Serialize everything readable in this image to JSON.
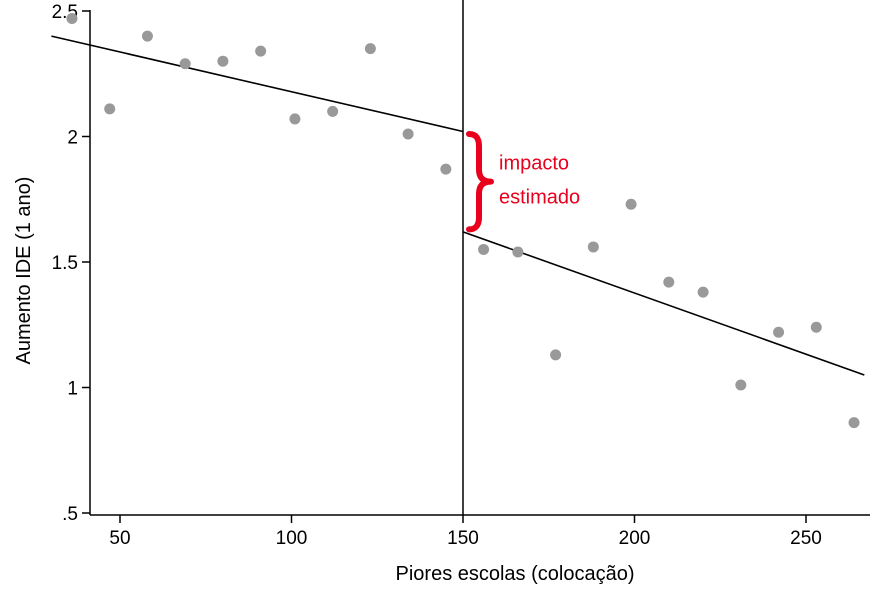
{
  "chart_data": {
    "type": "scatter",
    "xlabel": "Piores escolas (colocação)",
    "ylabel": "Aumento IDE (1 ano)",
    "xlim": [
      30,
      270
    ],
    "ylim": [
      0.5,
      2.5
    ],
    "xticks": [
      {
        "value": 50,
        "label": "50"
      },
      {
        "value": 100,
        "label": "100"
      },
      {
        "value": 150,
        "label": "150"
      },
      {
        "value": 200,
        "label": "200"
      },
      {
        "value": 250,
        "label": "250"
      }
    ],
    "yticks": [
      {
        "value": 0.5,
        "label": ".5"
      },
      {
        "value": 1,
        "label": "1"
      },
      {
        "value": 1.5,
        "label": "1.5"
      },
      {
        "value": 2,
        "label": "2"
      },
      {
        "value": 2.5,
        "label": "2.5"
      }
    ],
    "grid": false,
    "points": [
      {
        "x": 36,
        "y": 2.47
      },
      {
        "x": 47,
        "y": 2.11
      },
      {
        "x": 58,
        "y": 2.4
      },
      {
        "x": 69,
        "y": 2.29
      },
      {
        "x": 80,
        "y": 2.3
      },
      {
        "x": 91,
        "y": 2.34
      },
      {
        "x": 101,
        "y": 2.07
      },
      {
        "x": 112,
        "y": 2.1
      },
      {
        "x": 123,
        "y": 2.35
      },
      {
        "x": 134,
        "y": 2.01
      },
      {
        "x": 145,
        "y": 1.87
      },
      {
        "x": 156,
        "y": 1.55
      },
      {
        "x": 166,
        "y": 1.54
      },
      {
        "x": 177,
        "y": 1.13
      },
      {
        "x": 188,
        "y": 1.56
      },
      {
        "x": 199,
        "y": 1.73
      },
      {
        "x": 210,
        "y": 1.42
      },
      {
        "x": 220,
        "y": 1.38
      },
      {
        "x": 231,
        "y": 1.01
      },
      {
        "x": 242,
        "y": 1.22
      },
      {
        "x": 253,
        "y": 1.24
      },
      {
        "x": 264,
        "y": 0.86
      }
    ],
    "fit_lines": [
      {
        "x": [
          30,
          150
        ],
        "y": [
          2.4,
          2.02
        ]
      },
      {
        "x": [
          150,
          267
        ],
        "y": [
          1.62,
          1.05
        ]
      }
    ],
    "cutoff_x": 150,
    "annotation": {
      "lines": [
        "impacto",
        "estimado"
      ],
      "y_range": [
        1.63,
        2.01
      ],
      "color": "#e8001c"
    },
    "point_color": "#999999",
    "line_color": "#000000"
  }
}
